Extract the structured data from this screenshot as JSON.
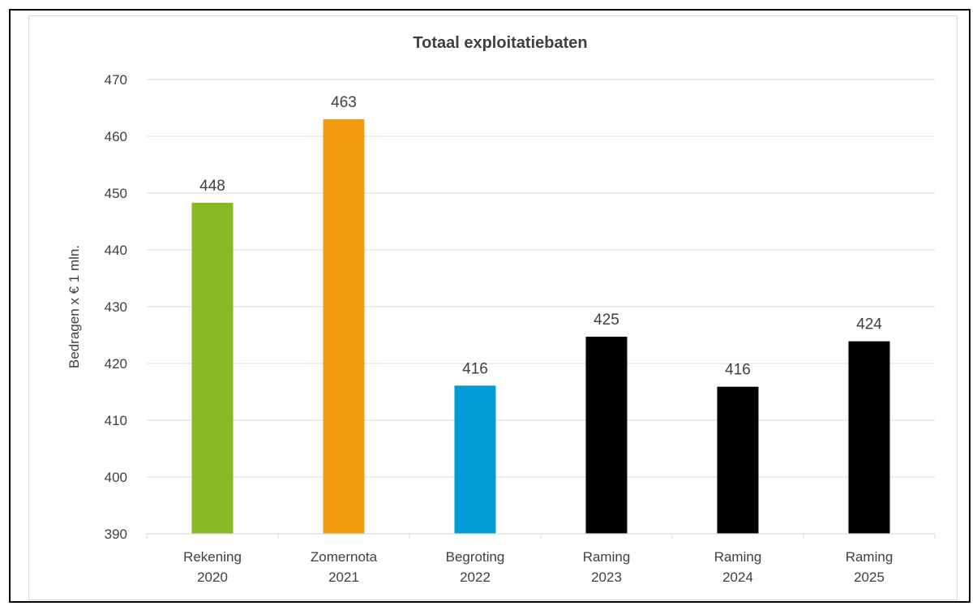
{
  "chart_data": {
    "type": "bar",
    "title": "Totaal exploitatiebaten",
    "ylabel": "Bedragen x € 1 mln.",
    "xlabel": "",
    "ylim": [
      390,
      470
    ],
    "yticks": [
      "390",
      "400",
      "410",
      "420",
      "430",
      "440",
      "450",
      "460",
      "470"
    ],
    "grid": true,
    "categories": [
      [
        "Rekening",
        "2020"
      ],
      [
        "Zomernota",
        "2021"
      ],
      [
        "Begroting",
        "2022"
      ],
      [
        "Raming",
        "2023"
      ],
      [
        "Raming",
        "2024"
      ],
      [
        "Raming",
        "2025"
      ]
    ],
    "values": [
      448.3,
      463.0,
      416.1,
      424.7,
      415.9,
      423.9
    ],
    "data_labels": [
      "448",
      "463",
      "416",
      "425",
      "416",
      "424"
    ],
    "colors": [
      "#8aba23",
      "#f29c12",
      "#009cd8",
      "#000000",
      "#000000",
      "#000000"
    ],
    "text_color": "#404040",
    "grid_color": "#d9d9d9"
  }
}
